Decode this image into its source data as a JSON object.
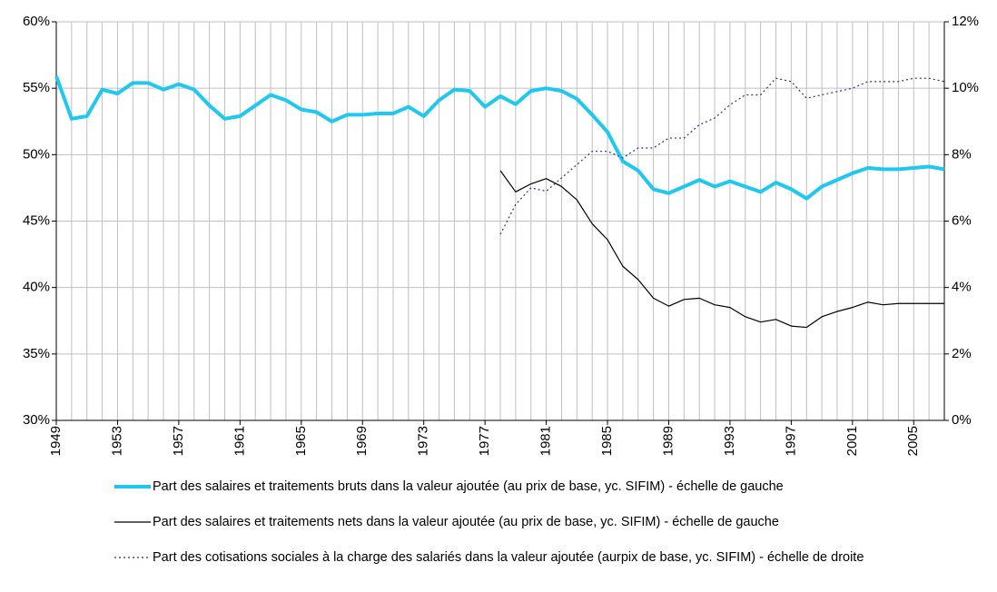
{
  "chart_data": {
    "type": "line",
    "x": [
      1949,
      1950,
      1951,
      1952,
      1953,
      1954,
      1955,
      1956,
      1957,
      1958,
      1959,
      1960,
      1961,
      1962,
      1963,
      1964,
      1965,
      1966,
      1967,
      1968,
      1969,
      1970,
      1971,
      1972,
      1973,
      1974,
      1975,
      1976,
      1977,
      1978,
      1979,
      1980,
      1981,
      1982,
      1983,
      1984,
      1985,
      1986,
      1987,
      1988,
      1989,
      1990,
      1991,
      1992,
      1993,
      1994,
      1995,
      1996,
      1997,
      1998,
      1999,
      2000,
      2001,
      2002,
      2003,
      2004,
      2005,
      2006,
      2007
    ],
    "xlim": [
      1949,
      2007
    ],
    "xticks": [
      1949,
      1953,
      1957,
      1961,
      1965,
      1969,
      1973,
      1977,
      1981,
      1985,
      1989,
      1993,
      1997,
      2001,
      2005
    ],
    "ylim": [
      30,
      60
    ],
    "yticks": [
      {
        "value": 30,
        "label": "30%"
      },
      {
        "value": 35,
        "label": "35%"
      },
      {
        "value": 40,
        "label": "40%"
      },
      {
        "value": 45,
        "label": "45%"
      },
      {
        "value": 50,
        "label": "50%"
      },
      {
        "value": 55,
        "label": "55%"
      },
      {
        "value": 60,
        "label": "60%"
      }
    ],
    "y2lim": [
      0,
      12
    ],
    "y2ticks": [
      {
        "value": 0,
        "label": "0%"
      },
      {
        "value": 2,
        "label": "2%"
      },
      {
        "value": 4,
        "label": "4%"
      },
      {
        "value": 6,
        "label": "6%"
      },
      {
        "value": 8,
        "label": "8%"
      },
      {
        "value": 10,
        "label": "10%"
      },
      {
        "value": 12,
        "label": "12%"
      }
    ],
    "grid": true,
    "series": [
      {
        "name": "Part des salaires et traitements bruts dans la valeur ajoutée (au prix de base, yc. SIFIM) - échelle de gauche",
        "color": "#1ec8f0",
        "width": 4,
        "style": "solid",
        "axis": "y",
        "values": [
          55.9,
          52.7,
          52.9,
          54.9,
          54.6,
          55.4,
          55.4,
          54.9,
          55.3,
          54.9,
          53.7,
          52.7,
          52.9,
          53.7,
          54.5,
          54.1,
          53.4,
          53.2,
          52.5,
          53.0,
          53.0,
          53.1,
          53.1,
          53.6,
          52.9,
          54.1,
          54.9,
          54.8,
          53.6,
          54.4,
          53.8,
          54.8,
          55.0,
          54.8,
          54.2,
          53.0,
          51.7,
          49.5,
          48.8,
          47.4,
          47.1,
          47.6,
          48.1,
          47.6,
          48.0,
          47.6,
          47.2,
          47.9,
          47.4,
          46.7,
          47.6,
          48.1,
          48.6,
          49.0,
          48.9,
          48.9,
          49.0,
          49.1,
          48.9
        ]
      },
      {
        "name": "Part des salaires et traitements nets dans la valeur ajoutée (au prix de base, yc. SIFIM) - échelle de gauche",
        "color": "#000000",
        "width": 1.2,
        "style": "solid",
        "axis": "y",
        "values": [
          null,
          null,
          null,
          null,
          null,
          null,
          null,
          null,
          null,
          null,
          null,
          null,
          null,
          null,
          null,
          null,
          null,
          null,
          null,
          null,
          null,
          null,
          null,
          null,
          null,
          null,
          null,
          null,
          null,
          48.8,
          47.2,
          47.8,
          48.2,
          47.6,
          46.6,
          44.8,
          43.6,
          41.6,
          40.6,
          39.2,
          38.6,
          39.1,
          39.2,
          38.7,
          38.5,
          37.8,
          37.4,
          37.6,
          37.1,
          37.0,
          37.8,
          38.2,
          38.5,
          38.9,
          38.7,
          38.8,
          38.8,
          38.8,
          38.8
        ]
      },
      {
        "name": "Part des cotisations sociales à la charge des salariés dans la valeur ajoutée (aurpix de base, yc. SIFIM) - échelle de droite",
        "color": "#2a2aa8",
        "width": 1.2,
        "style": "dotted",
        "axis": "y2",
        "values": [
          null,
          null,
          null,
          null,
          null,
          null,
          null,
          null,
          null,
          null,
          null,
          null,
          null,
          null,
          null,
          null,
          null,
          null,
          null,
          null,
          null,
          null,
          null,
          null,
          null,
          null,
          null,
          null,
          null,
          5.6,
          6.5,
          7.0,
          6.9,
          7.3,
          7.7,
          8.1,
          8.1,
          7.9,
          8.2,
          8.2,
          8.5,
          8.5,
          8.9,
          9.1,
          9.5,
          9.8,
          9.8,
          10.3,
          10.2,
          9.7,
          9.8,
          9.9,
          10.0,
          10.2,
          10.2,
          10.2,
          10.3,
          10.3,
          10.2
        ]
      }
    ]
  }
}
